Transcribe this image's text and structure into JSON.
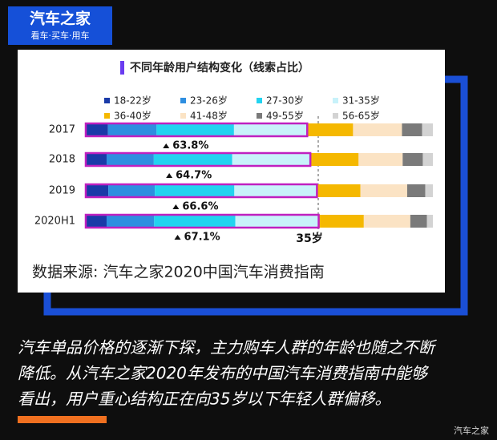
{
  "logo": {
    "title": "汽车之家",
    "slogan": "看车·买车·用车"
  },
  "chart_data": {
    "type": "stacked_barh",
    "title": "不同年龄用户结构变化（线索占比）",
    "categories": [
      "2017",
      "2018",
      "2019",
      "2020H1"
    ],
    "xlim": [
      0,
      100
    ],
    "series": [
      {
        "name": "18-22岁",
        "color": "#1a3aa8",
        "values": [
          6.4,
          6.0,
          6.5,
          6.0
        ]
      },
      {
        "name": "23-26岁",
        "color": "#2e8ee0",
        "values": [
          14.0,
          13.6,
          13.4,
          13.7
        ]
      },
      {
        "name": "27-30岁",
        "color": "#22d3f0",
        "values": [
          22.3,
          22.6,
          22.9,
          23.4
        ]
      },
      {
        "name": "31-35岁",
        "color": "#c8f2fa",
        "values": [
          21.1,
          22.5,
          23.8,
          24.0
        ]
      },
      {
        "name": "36-40岁",
        "color": "#f5b800",
        "values": [
          13.2,
          13.9,
          12.5,
          13.0
        ]
      },
      {
        "name": "41-48岁",
        "color": "#fbe3c4",
        "values": [
          14.1,
          12.7,
          13.5,
          13.4
        ]
      },
      {
        "name": "49-55岁",
        "color": "#7a7a7a",
        "values": [
          5.8,
          5.8,
          5.2,
          4.8
        ]
      },
      {
        "name": "56-65岁",
        "color": "#d3d3d3",
        "values": [
          3.1,
          2.9,
          2.2,
          1.7
        ]
      }
    ],
    "under_35_share": {
      "values": [
        63.8,
        64.7,
        66.6,
        67.1
      ],
      "value_labels": [
        "63.8%",
        "64.7%",
        "66.6%",
        "67.1%"
      ]
    },
    "marker_label": "35岁",
    "source": "数据来源: 汽车之家2020中国汽车消费指南"
  },
  "caption": [
    "汽车单品价格的逐渐下探，主力购车人群的年龄也随之不断",
    "降低。从汽车之家2020年发布的中国汽车消费指南中能够",
    "看出，用户重心结构正在向35岁以下年轻人群偏移。"
  ],
  "watermark": "汽车之家"
}
